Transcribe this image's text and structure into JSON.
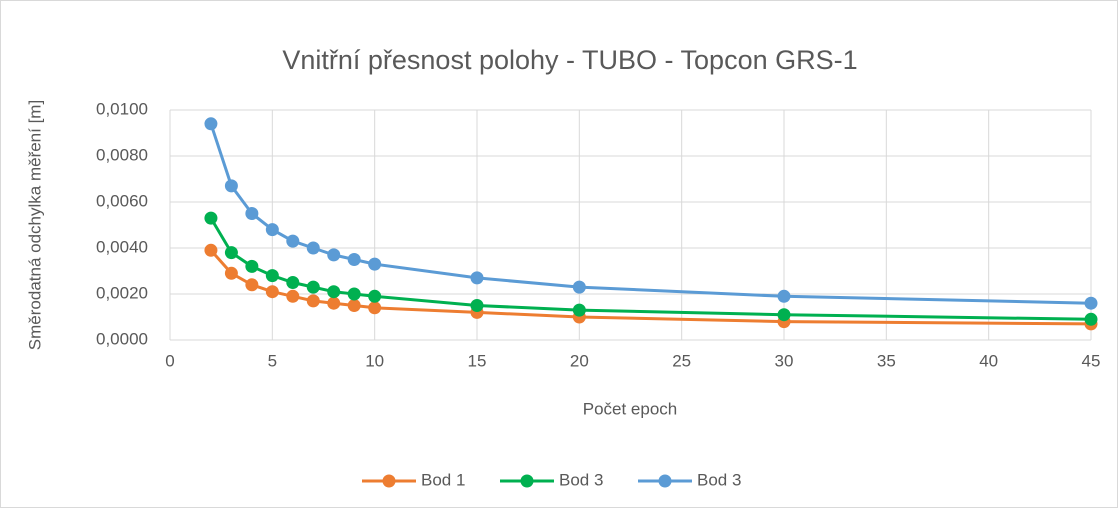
{
  "chart_data": {
    "type": "line",
    "title": "Vnitřní přesnost polohy - TUBO - Topcon GRS-1",
    "x_label": "Počet epoch",
    "y_label": "Směrodatná odchylka měření [m]",
    "x": [
      2,
      3,
      4,
      5,
      6,
      7,
      8,
      9,
      10,
      15,
      20,
      30,
      45
    ],
    "series": [
      {
        "name": "Bod 1",
        "color": "#ed7d31",
        "values": [
          0.0039,
          0.0029,
          0.0024,
          0.0021,
          0.0019,
          0.0017,
          0.0016,
          0.0015,
          0.0014,
          0.0012,
          0.001,
          0.0008,
          0.0007
        ]
      },
      {
        "name": "Bod 3",
        "color": "#00b050",
        "values": [
          0.0053,
          0.0038,
          0.0032,
          0.0028,
          0.0025,
          0.0023,
          0.0021,
          0.002,
          0.0019,
          0.0015,
          0.0013,
          0.0011,
          0.0009
        ]
      },
      {
        "name": "Bod 3",
        "color": "#5b9bd5",
        "values": [
          0.0094,
          0.0067,
          0.0055,
          0.0048,
          0.0043,
          0.004,
          0.0037,
          0.0035,
          0.0033,
          0.0027,
          0.0023,
          0.0019,
          0.0016
        ]
      }
    ],
    "xlim": [
      0,
      45
    ],
    "xticks": [
      0,
      5,
      10,
      15,
      20,
      25,
      30,
      35,
      40,
      45
    ],
    "ylim": [
      0,
      0.01
    ],
    "yticks": [
      {
        "value": 0,
        "label": "0,0000"
      },
      {
        "value": 0.002,
        "label": "0,0020"
      },
      {
        "value": 0.004,
        "label": "0,0040"
      },
      {
        "value": 0.006,
        "label": "0,0060"
      },
      {
        "value": 0.008,
        "label": "0,0080"
      },
      {
        "value": 0.01,
        "label": "0,0100"
      }
    ],
    "grid": true,
    "legend": "bottom"
  }
}
